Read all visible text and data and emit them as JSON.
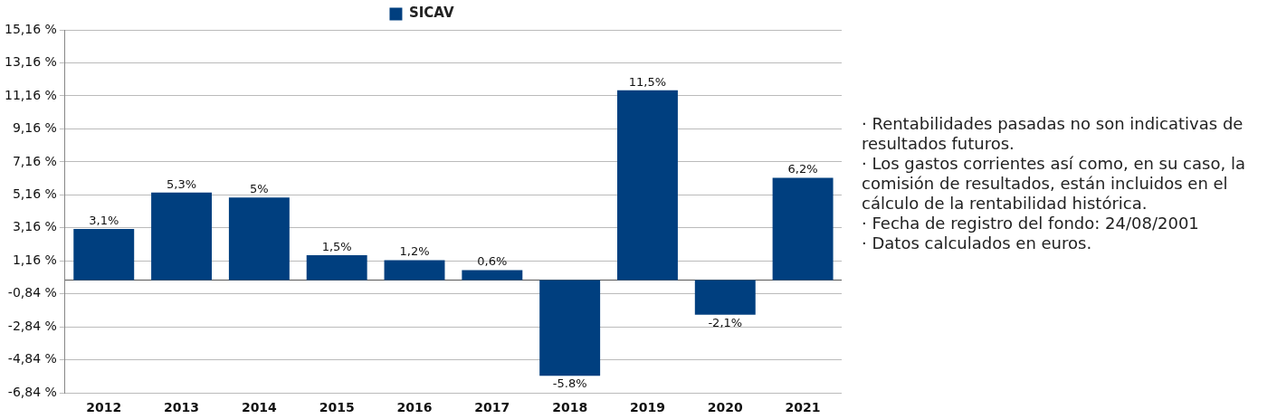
{
  "chart_data": {
    "type": "bar",
    "categories": [
      "2012",
      "2013",
      "2014",
      "2015",
      "2016",
      "2017",
      "2018",
      "2019",
      "2020",
      "2021"
    ],
    "series": [
      {
        "name": "SICAV",
        "color": "#003f7f",
        "values": [
          3.1,
          5.3,
          5,
          1.5,
          1.2,
          0.6,
          -5.8,
          11.5,
          -2.1,
          6.2
        ],
        "value_labels": [
          "3,1%",
          "5,3%",
          "5%",
          "1,5%",
          "1,2%",
          "0,6%",
          "-5.8%",
          "11,5%",
          "-2,1%",
          "6,2%"
        ]
      }
    ],
    "ylim": [
      -6.84,
      15.16
    ],
    "yticks": [
      {
        "value": -6.84,
        "label": "-6,84 %"
      },
      {
        "value": -4.84,
        "label": "-4,84 %"
      },
      {
        "value": -2.84,
        "label": "-2,84 %"
      },
      {
        "value": -0.84,
        "label": "-0,84 %"
      },
      {
        "value": 1.16,
        "label": "1,16 %"
      },
      {
        "value": 3.16,
        "label": "3,16 %"
      },
      {
        "value": 5.16,
        "label": "5,16 %"
      },
      {
        "value": 7.16,
        "label": "7,16 %"
      },
      {
        "value": 9.16,
        "label": "9,16 %"
      },
      {
        "value": 11.16,
        "label": "11,16 %"
      },
      {
        "value": 13.16,
        "label": "13,16 %"
      },
      {
        "value": 15.16,
        "label": "15,16 %"
      }
    ],
    "grid": "y",
    "legend": "top",
    "annotations": [
      "· Rentabilidades pasadas no son indicativas de resultados futuros.",
      "· Los gastos corrientes así como, en su caso, la comisión de resultados, están incluidos en el cálculo de la rentabilidad histórica.",
      "· Fecha de registro del fondo: 24/08/2001",
      "· Datos calculados en euros."
    ]
  }
}
